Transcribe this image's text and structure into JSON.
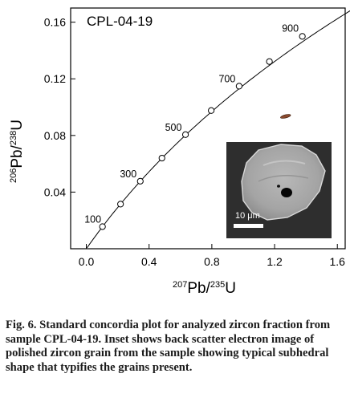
{
  "chart_data": {
    "type": "line",
    "title": "CPL-04-19",
    "xlabel": {
      "base": "Pb",
      "iso": "207",
      "sub": "235",
      "tail": "U"
    },
    "ylabel": {
      "base": "Pb",
      "iso": "206",
      "sub": "238",
      "tail": "U"
    },
    "xlim": [
      -0.1,
      1.65
    ],
    "ylim": [
      0.0,
      0.17
    ],
    "x_ticks": [
      0.0,
      0.4,
      0.8,
      1.2,
      1.6
    ],
    "x_tick_labels": [
      "0.0",
      "0.4",
      "0.8",
      "1.2",
      "1.6"
    ],
    "y_ticks": [
      0.04,
      0.08,
      0.12,
      0.16
    ],
    "y_tick_labels": [
      "0.04",
      "0.08",
      "0.12",
      "0.16"
    ],
    "grid": false,
    "series": [
      {
        "kind": "concordia-markers",
        "points": [
          {
            "age": 100,
            "x": 0.103,
            "y": 0.0156
          },
          {
            "age": 200,
            "x": 0.218,
            "y": 0.0315
          },
          {
            "age": 300,
            "x": 0.344,
            "y": 0.0477
          },
          {
            "age": 400,
            "x": 0.482,
            "y": 0.064
          },
          {
            "age": 500,
            "x": 0.632,
            "y": 0.0806
          },
          {
            "age": 600,
            "x": 0.796,
            "y": 0.0976
          },
          {
            "age": 700,
            "x": 0.974,
            "y": 0.1148
          },
          {
            "age": 800,
            "x": 1.167,
            "y": 0.1322
          },
          {
            "age": 900,
            "x": 1.377,
            "y": 0.15
          }
        ]
      }
    ],
    "age_labels": [
      {
        "age": 100,
        "text": "100"
      },
      {
        "age": 300,
        "text": "300"
      },
      {
        "age": 500,
        "text": "500"
      },
      {
        "age": 700,
        "text": "700"
      },
      {
        "age": 900,
        "text": "900"
      }
    ],
    "data_point": {
      "x": 1.27,
      "y": 0.0935,
      "color": "#8a4a2e"
    },
    "inset": {
      "scale_bar_label": "10 μm"
    }
  },
  "caption": {
    "label": "Fig. 6.",
    "text": "Standard concordia plot for analyzed zircon fraction from sample CPL-04-19. Inset shows back scatter electron image of polished zircon grain from the sample showing typical subhedral shape that typifies the grains present."
  }
}
